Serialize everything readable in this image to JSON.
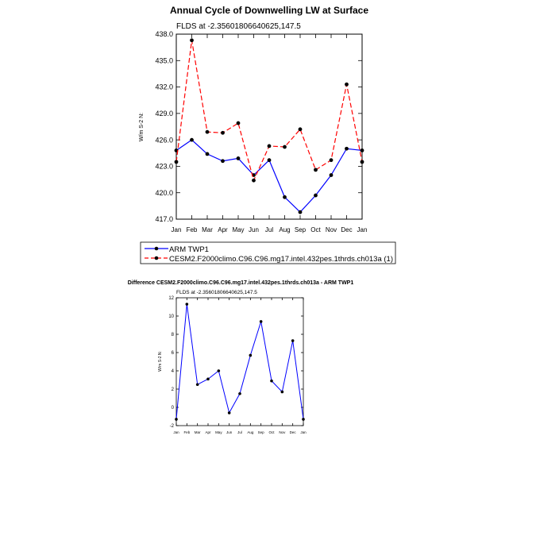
{
  "charts": {
    "top": {
      "title": "Annual Cycle of Downwelling LW at Surface",
      "subtitle": "FLDS at -2.35601806640625,147.5",
      "ylabel": "W/m S-2 N:",
      "legend": {
        "arm_label": "ARM TWP1",
        "cesm_label": "CESM2.F2000climo.C96.C96.mg17.intel.432pes.1thrds.ch013a (1)"
      }
    },
    "bottom": {
      "title": "Difference CESM2.F2000climo.C96.C96.mg17.intel.432pes.1thrds.ch013a - ARM TWP1",
      "subtitle": "FLDS at -2.35601806640625,147.5",
      "ylabel": "W/m S-2 N:"
    }
  },
  "chart_data": [
    {
      "type": "line",
      "title": "Annual Cycle of Downwelling LW at Surface",
      "subtitle": "FLDS at -2.35601806640625,147.5",
      "xlabel": "",
      "ylabel": "W/m S-2 N:",
      "categories": [
        "Jan",
        "Feb",
        "Mar",
        "Apr",
        "May",
        "Jun",
        "Jul",
        "Aug",
        "Sep",
        "Oct",
        "Nov",
        "Dec",
        "Jan"
      ],
      "ylim": [
        417.0,
        438.0
      ],
      "yticks": [
        "417.0",
        "420.0",
        "423.0",
        "426.0",
        "429.0",
        "432.0",
        "435.0",
        "438.0"
      ],
      "legend_placement": "bottom",
      "grid": false,
      "series": [
        {
          "name": "ARM TWP1",
          "color": "#0000ff",
          "style": "solid",
          "values": [
            424.8,
            426.0,
            424.4,
            423.6,
            423.9,
            422.0,
            423.7,
            419.5,
            417.8,
            419.7,
            422.0,
            425.0,
            424.8
          ]
        },
        {
          "name": "CESM2.F2000climo.C96.C96.mg17.intel.432pes.1thrds.ch013a (1)",
          "color": "#ff0000",
          "style": "dashed",
          "values": [
            423.5,
            437.3,
            426.9,
            426.8,
            427.9,
            421.4,
            425.3,
            425.2,
            427.2,
            422.6,
            423.7,
            432.3,
            423.5
          ]
        }
      ]
    },
    {
      "type": "line",
      "title": "Difference CESM2.F2000climo.C96.C96.mg17.intel.432pes.1thrds.ch013a - ARM TWP1",
      "subtitle": "FLDS at -2.35601806640625,147.5",
      "xlabel": "",
      "ylabel": "W/m S-2 N:",
      "categories": [
        "Jan",
        "Feb",
        "Mar",
        "Apr",
        "May",
        "Jun",
        "Jul",
        "Aug",
        "Sep",
        "Oct",
        "Nov",
        "Dec",
        "Jan"
      ],
      "ylim": [
        -2,
        12
      ],
      "yticks": [
        "-2",
        "0",
        "2",
        "4",
        "6",
        "8",
        "10",
        "12"
      ],
      "grid": false,
      "series": [
        {
          "name": "",
          "color": "#0000ff",
          "style": "solid",
          "values": [
            -1.3,
            11.3,
            2.5,
            3.1,
            4.0,
            -0.6,
            1.5,
            5.7,
            9.4,
            2.9,
            1.7,
            7.3,
            -1.3
          ]
        }
      ]
    }
  ]
}
